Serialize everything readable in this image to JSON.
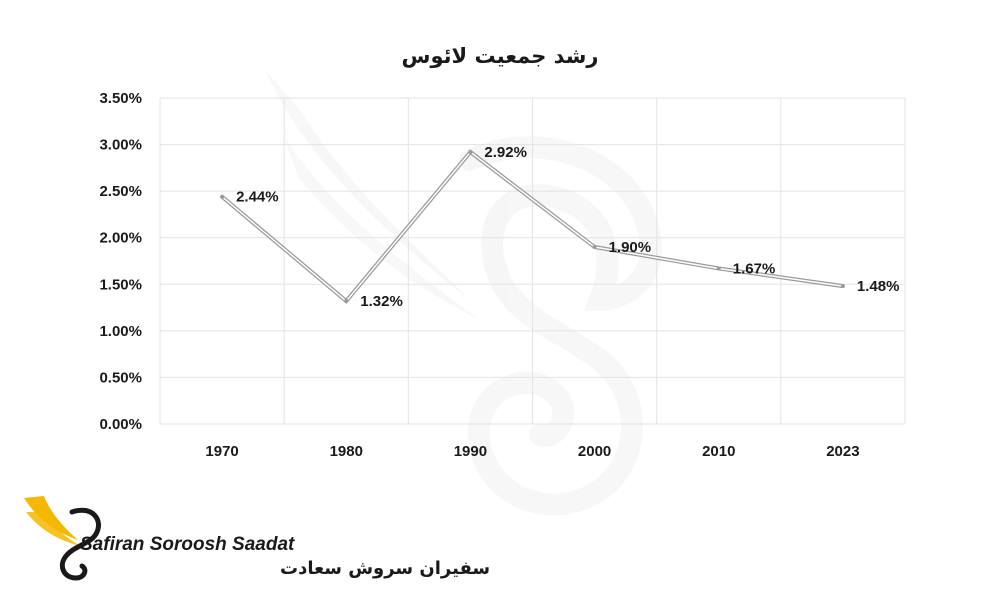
{
  "chart_data": {
    "type": "line",
    "title": "رشد جمعیت لائوس",
    "categories": [
      "1970",
      "1980",
      "1990",
      "2000",
      "2010",
      "2023"
    ],
    "series": [
      {
        "values": [
          2.44,
          1.32,
          2.92,
          1.9,
          1.67,
          1.48
        ],
        "labels": [
          "2.44%",
          "1.32%",
          "2.92%",
          "1.90%",
          "1.67%",
          "1.48%"
        ]
      }
    ],
    "yticks": [
      "0.00%",
      "0.50%",
      "1.00%",
      "1.50%",
      "2.00%",
      "2.50%",
      "3.00%",
      "3.50%"
    ],
    "ylim": [
      0,
      3.5
    ],
    "grid": true,
    "legend": "none",
    "colors": {
      "line": "#9a9a9a",
      "grid": "#e3e3e3",
      "text": "#1a1a1a",
      "accent": "#f5b800"
    }
  },
  "watermark": {
    "brand_en": "Safiran Soroosh Saadat",
    "brand_fa": "سفیران سروش سعادت"
  }
}
